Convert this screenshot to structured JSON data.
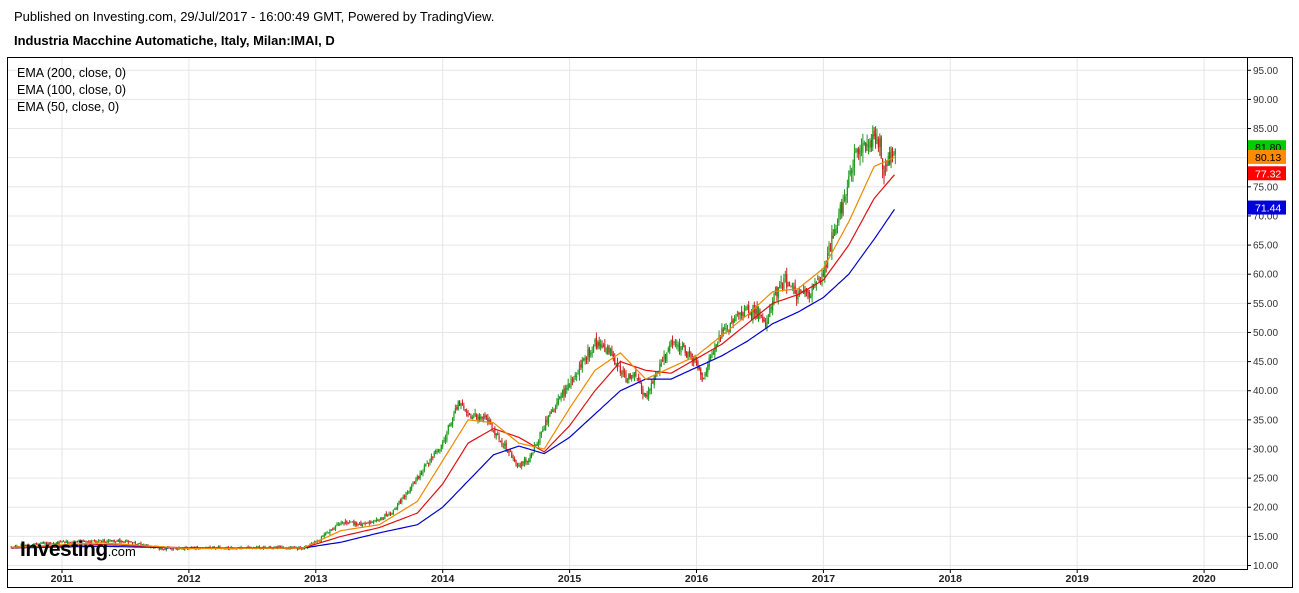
{
  "header": {
    "published": "Published on Investing.com, 29/Jul/2017 - 16:00:49 GMT, Powered by TradingView.",
    "title": "Industria Macchine Automatiche, Italy, Milan:IMAI, D"
  },
  "legend": [
    "EMA (200, close, 0)",
    "EMA (100, close, 0)",
    "EMA (50, close, 0)"
  ],
  "logo": {
    "brand": "Investing",
    "suffix": ".com"
  },
  "chart_data": {
    "type": "candlestick",
    "ylim": [
      10,
      97.5
    ],
    "y_ticks": [
      10,
      15,
      20,
      25,
      30,
      35,
      40,
      45,
      50,
      55,
      60,
      65,
      70,
      75,
      80,
      85,
      90,
      95
    ],
    "x_ticks": [
      "2011",
      "2012",
      "2013",
      "2014",
      "2015",
      "2016",
      "2017",
      "2018",
      "2019",
      "2020"
    ],
    "colors": {
      "up": "#1e9a1e",
      "down": "#cc1f1f",
      "ema200": "#0000cc",
      "ema100": "#dd1111",
      "ema50": "#ee8800",
      "price_badge": "#00cc00",
      "grid": "#e6e6e6"
    },
    "price_series": {
      "x": [
        2010.6,
        2011.0,
        2011.5,
        2011.8,
        2012.0,
        2012.5,
        2012.9,
        2013.0,
        2013.2,
        2013.4,
        2013.6,
        2013.8,
        2014.0,
        2014.12,
        2014.2,
        2014.35,
        2014.5,
        2014.6,
        2014.7,
        2014.8,
        2014.9,
        2015.0,
        2015.1,
        2015.2,
        2015.3,
        2015.45,
        2015.5,
        2015.6,
        2015.7,
        2015.8,
        2015.9,
        2016.0,
        2016.05,
        2016.1,
        2016.2,
        2016.3,
        2016.4,
        2016.5,
        2016.55,
        2016.6,
        2016.7,
        2016.8,
        2016.9,
        2017.0,
        2017.05,
        2017.15,
        2017.25,
        2017.35,
        2017.45,
        2017.48,
        2017.52,
        2017.57
      ],
      "close": [
        13.2,
        14.0,
        14.2,
        12.8,
        13.0,
        13.1,
        13.0,
        14.0,
        17.5,
        17.0,
        19.0,
        25.0,
        31.0,
        38.0,
        36.0,
        35.0,
        30.0,
        27.0,
        29.0,
        34.0,
        38.0,
        41.0,
        45.0,
        48.0,
        47.0,
        42.0,
        43.0,
        39.0,
        44.0,
        48.0,
        47.0,
        45.0,
        42.0,
        45.0,
        50.0,
        52.0,
        54.0,
        53.0,
        51.0,
        56.0,
        59.0,
        56.0,
        57.0,
        60.0,
        65.0,
        72.0,
        80.0,
        83.0,
        82.0,
        77.0,
        80.0,
        81.8
      ]
    },
    "series": [
      {
        "name": "EMA (200, close, 0)",
        "x": [
          2010.6,
          2011.3,
          2012.0,
          2012.9,
          2013.2,
          2013.5,
          2013.8,
          2014.0,
          2014.2,
          2014.4,
          2014.6,
          2014.8,
          2015.0,
          2015.2,
          2015.4,
          2015.6,
          2015.8,
          2016.0,
          2016.2,
          2016.4,
          2016.6,
          2016.8,
          2017.0,
          2017.2,
          2017.4,
          2017.57
        ],
        "values": [
          13.0,
          13.3,
          13.0,
          13.0,
          14.0,
          15.6,
          17.0,
          20.0,
          24.5,
          29.0,
          30.5,
          29.2,
          32.0,
          36.0,
          40.0,
          42.0,
          42.0,
          44.0,
          46.0,
          48.5,
          51.5,
          53.5,
          56.0,
          60.0,
          66.0,
          71.44
        ]
      },
      {
        "name": "EMA (100, close, 0)",
        "x": [
          2010.6,
          2011.3,
          2012.0,
          2012.9,
          2013.2,
          2013.5,
          2013.8,
          2014.0,
          2014.2,
          2014.4,
          2014.6,
          2014.8,
          2015.0,
          2015.2,
          2015.4,
          2015.6,
          2015.8,
          2016.0,
          2016.2,
          2016.4,
          2016.6,
          2016.8,
          2017.0,
          2017.2,
          2017.4,
          2017.57
        ],
        "values": [
          13.0,
          13.6,
          13.0,
          13.0,
          15.0,
          16.5,
          19.0,
          24.0,
          31.0,
          33.5,
          32.0,
          29.5,
          34.0,
          40.0,
          45.0,
          43.5,
          43.0,
          45.5,
          48.0,
          51.5,
          55.0,
          56.5,
          59.0,
          65.0,
          73.0,
          77.32
        ]
      },
      {
        "name": "EMA (50, close, 0)",
        "x": [
          2010.6,
          2011.3,
          2012.0,
          2012.9,
          2013.2,
          2013.5,
          2013.8,
          2014.0,
          2014.2,
          2014.4,
          2014.6,
          2014.8,
          2015.0,
          2015.2,
          2015.4,
          2015.6,
          2015.8,
          2016.0,
          2016.2,
          2016.4,
          2016.6,
          2016.8,
          2017.0,
          2017.2,
          2017.4,
          2017.57
        ],
        "values": [
          13.1,
          13.9,
          12.9,
          13.0,
          16.0,
          17.0,
          21.0,
          28.0,
          35.0,
          34.5,
          31.0,
          30.0,
          37.0,
          43.5,
          46.5,
          42.0,
          44.0,
          46.0,
          49.5,
          53.0,
          57.0,
          57.5,
          61.0,
          69.0,
          78.5,
          80.13
        ]
      }
    ],
    "price_badges": [
      {
        "value": 81.8,
        "label": "81.80",
        "color": "#00cc00",
        "text_color": "#000000"
      },
      {
        "value": 80.13,
        "label": "80.13",
        "color": "#ff8c00",
        "text_color": "#000000"
      },
      {
        "value": 77.32,
        "label": "77.32",
        "color": "#ff0000",
        "text_color": "#ffffff"
      },
      {
        "value": 71.44,
        "label": "71.44",
        "color": "#0000dd",
        "text_color": "#ffffff"
      }
    ]
  }
}
